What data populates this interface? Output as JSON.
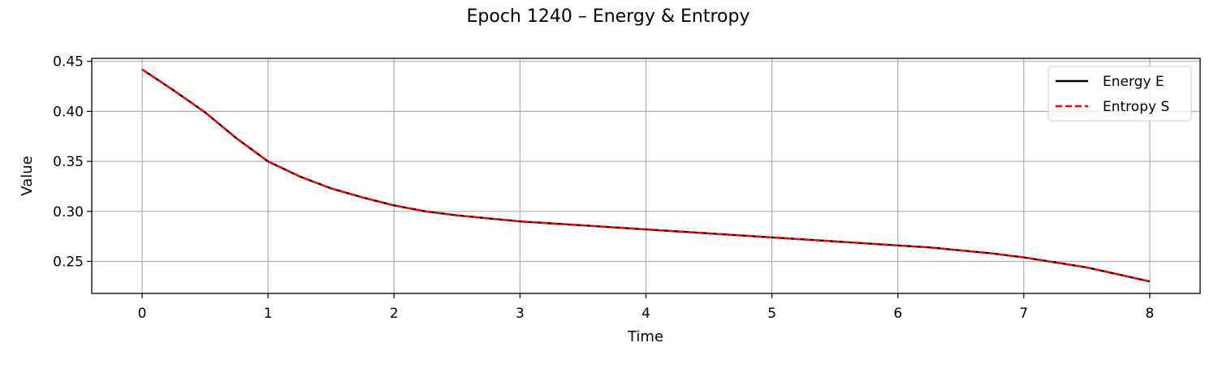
{
  "chart_data": {
    "type": "line",
    "title": "Epoch 1240 – Energy & Entropy",
    "xlabel": "Time",
    "ylabel": "Value",
    "xlim": [
      -0.4,
      8.4
    ],
    "ylim": [
      0.218,
      0.453
    ],
    "xticks": [
      0,
      1,
      2,
      3,
      4,
      5,
      6,
      7,
      8
    ],
    "xtick_labels": [
      "0",
      "1",
      "2",
      "3",
      "4",
      "5",
      "6",
      "7",
      "8"
    ],
    "yticks": [
      0.25,
      0.3,
      0.35,
      0.4,
      0.45
    ],
    "ytick_labels": [
      "0.25",
      "0.30",
      "0.35",
      "0.40",
      "0.45"
    ],
    "grid": true,
    "legend_position": "top-right",
    "x": [
      0,
      0.25,
      0.5,
      0.75,
      1.0,
      1.25,
      1.5,
      1.75,
      2.0,
      2.25,
      2.5,
      2.75,
      3.0,
      3.25,
      3.5,
      3.75,
      4.0,
      4.25,
      4.5,
      4.75,
      5.0,
      5.25,
      5.5,
      5.75,
      6.0,
      6.25,
      6.5,
      6.75,
      7.0,
      7.25,
      7.5,
      7.75,
      8.0
    ],
    "series": [
      {
        "name": "Energy E",
        "color": "#000000",
        "style": "solid",
        "values": [
          0.442,
          0.421,
          0.399,
          0.373,
          0.35,
          0.335,
          0.323,
          0.314,
          0.306,
          0.3,
          0.296,
          0.293,
          0.29,
          0.288,
          0.286,
          0.284,
          0.282,
          0.28,
          0.278,
          0.276,
          0.274,
          0.272,
          0.27,
          0.268,
          0.266,
          0.264,
          0.261,
          0.258,
          0.254,
          0.249,
          0.244,
          0.237,
          0.23
        ]
      },
      {
        "name": "Entropy S",
        "color": "#ff0000",
        "style": "dashed",
        "values": [
          0.442,
          0.421,
          0.399,
          0.373,
          0.35,
          0.335,
          0.323,
          0.314,
          0.306,
          0.3,
          0.296,
          0.293,
          0.29,
          0.288,
          0.286,
          0.284,
          0.282,
          0.28,
          0.278,
          0.276,
          0.274,
          0.272,
          0.27,
          0.268,
          0.266,
          0.264,
          0.261,
          0.258,
          0.254,
          0.249,
          0.244,
          0.237,
          0.23
        ]
      }
    ]
  }
}
